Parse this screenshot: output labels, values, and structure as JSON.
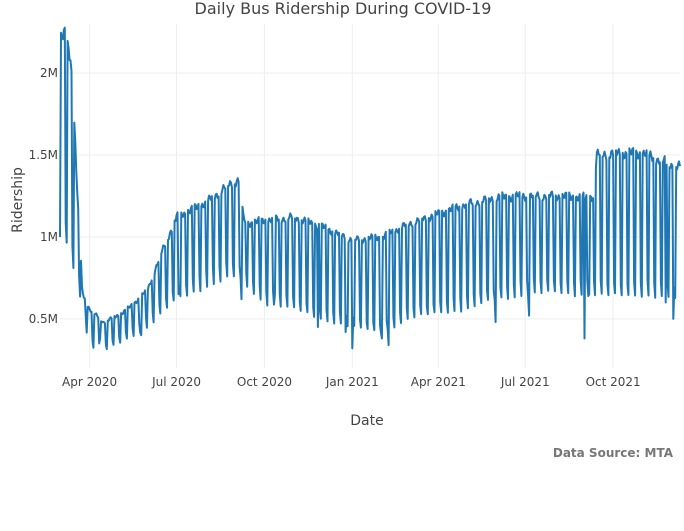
{
  "chart_data": {
    "type": "line",
    "title": "Daily Bus Ridership During COVID-19",
    "xlabel": "Date",
    "ylabel": "Ridership",
    "source": "Data Source: MTA",
    "grid": true,
    "xlim": [
      "2020-03-01",
      "2021-12-10"
    ],
    "ylim": [
      200000,
      2300000
    ],
    "x_ticks": [
      {
        "date": "2020-04-01",
        "label": "Apr 2020"
      },
      {
        "date": "2020-07-01",
        "label": "Jul 2020"
      },
      {
        "date": "2020-10-01",
        "label": "Oct 2020"
      },
      {
        "date": "2021-01-01",
        "label": "Jan 2021"
      },
      {
        "date": "2021-04-01",
        "label": "Apr 2021"
      },
      {
        "date": "2021-07-01",
        "label": "Jul 2021"
      },
      {
        "date": "2021-10-01",
        "label": "Oct 2021"
      }
    ],
    "y_ticks": [
      {
        "value": 500000,
        "label": "0.5M"
      },
      {
        "value": 1000000,
        "label": "1M"
      },
      {
        "value": 1500000,
        "label": "1.5M"
      },
      {
        "value": 2000000,
        "label": "2M"
      }
    ],
    "series": [
      {
        "color": "#1f77b4",
        "daily_start": "2020-03-01",
        "weekday_keypoints": [
          [
            "2020-03-01",
            2200000
          ],
          [
            "2020-03-06",
            2230000
          ],
          [
            "2020-03-12",
            2100000
          ],
          [
            "2020-03-16",
            1700000
          ],
          [
            "2020-03-20",
            1150000
          ],
          [
            "2020-03-25",
            650000
          ],
          [
            "2020-04-01",
            560000
          ],
          [
            "2020-04-15",
            480000
          ],
          [
            "2020-05-01",
            520000
          ],
          [
            "2020-05-15",
            580000
          ],
          [
            "2020-06-01",
            680000
          ],
          [
            "2020-06-15",
            900000
          ],
          [
            "2020-07-01",
            1120000
          ],
          [
            "2020-08-01",
            1210000
          ],
          [
            "2020-08-25",
            1320000
          ],
          [
            "2020-09-05",
            1350000
          ],
          [
            "2020-09-10",
            1080000
          ],
          [
            "2020-10-01",
            1100000
          ],
          [
            "2020-11-01",
            1120000
          ],
          [
            "2020-12-01",
            1060000
          ],
          [
            "2021-01-01",
            980000
          ],
          [
            "2021-02-01",
            1000000
          ],
          [
            "2021-03-01",
            1080000
          ],
          [
            "2021-04-01",
            1140000
          ],
          [
            "2021-05-01",
            1200000
          ],
          [
            "2021-06-01",
            1240000
          ],
          [
            "2021-07-01",
            1250000
          ],
          [
            "2021-08-01",
            1250000
          ],
          [
            "2021-09-01",
            1240000
          ],
          [
            "2021-09-10",
            1250000
          ],
          [
            "2021-09-14",
            1500000
          ],
          [
            "2021-10-01",
            1510000
          ],
          [
            "2021-11-01",
            1510000
          ],
          [
            "2021-12-06",
            1430000
          ]
        ],
        "weekend_keypoints": [
          [
            "2020-03-01",
            1000000
          ],
          [
            "2020-03-10",
            960000
          ],
          [
            "2020-03-20",
            700000
          ],
          [
            "2020-04-01",
            330000
          ],
          [
            "2020-04-15",
            300000
          ],
          [
            "2020-05-01",
            350000
          ],
          [
            "2020-06-01",
            450000
          ],
          [
            "2020-07-01",
            620000
          ],
          [
            "2020-08-01",
            700000
          ],
          [
            "2020-09-01",
            760000
          ],
          [
            "2020-10-01",
            600000
          ],
          [
            "2020-11-01",
            560000
          ],
          [
            "2020-12-01",
            500000
          ],
          [
            "2021-01-01",
            450000
          ],
          [
            "2021-02-01",
            420000
          ],
          [
            "2021-03-01",
            500000
          ],
          [
            "2021-04-01",
            540000
          ],
          [
            "2021-05-01",
            560000
          ],
          [
            "2021-06-01",
            620000
          ],
          [
            "2021-07-01",
            650000
          ],
          [
            "2021-08-01",
            660000
          ],
          [
            "2021-09-01",
            650000
          ],
          [
            "2021-10-01",
            640000
          ],
          [
            "2021-11-01",
            650000
          ],
          [
            "2021-12-06",
            620000
          ]
        ],
        "dips": [
          [
            "2020-03-24",
            700000
          ],
          [
            "2020-04-12",
            380000
          ],
          [
            "2020-05-25",
            400000
          ],
          [
            "2020-07-03",
            650000
          ],
          [
            "2020-09-07",
            620000
          ],
          [
            "2020-10-12",
            650000
          ],
          [
            "2020-11-26",
            450000
          ],
          [
            "2020-12-25",
            420000
          ],
          [
            "2021-01-01",
            320000
          ],
          [
            "2021-02-01",
            380000
          ],
          [
            "2021-02-08",
            340000
          ],
          [
            "2021-05-31",
            480000
          ],
          [
            "2021-07-05",
            520000
          ],
          [
            "2021-09-01",
            380000
          ],
          [
            "2021-09-06",
            650000
          ],
          [
            "2021-11-25",
            600000
          ],
          [
            "2021-12-03",
            500000
          ]
        ]
      }
    ]
  }
}
